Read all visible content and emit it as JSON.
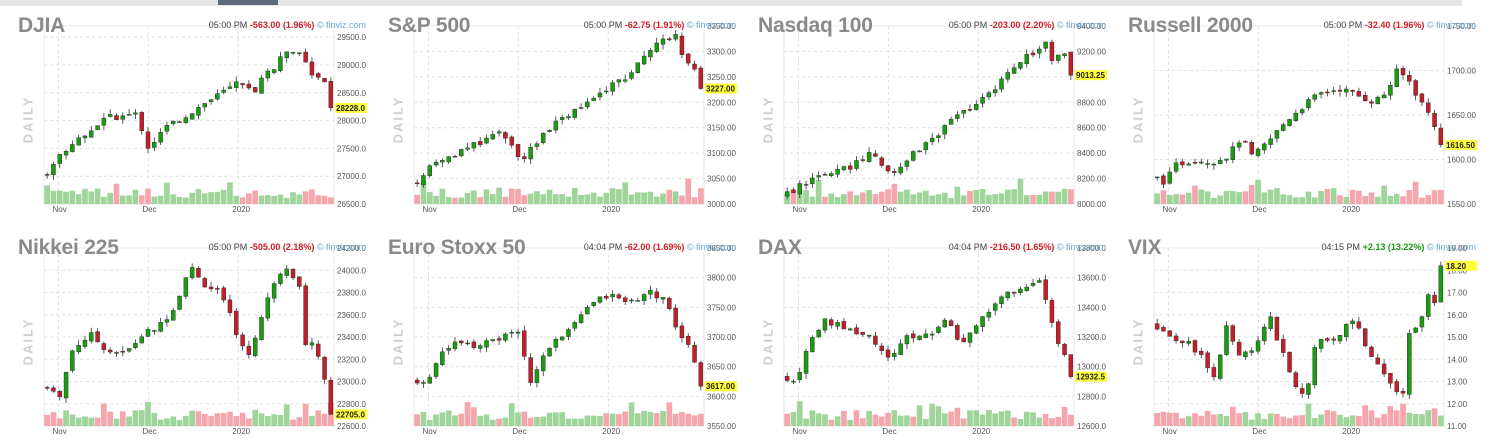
{
  "colors": {
    "up": "#1a9c12",
    "down": "#c0202a",
    "vol_up": "#9fd49a",
    "vol_down": "#f4a6ac",
    "last_bg": "#ffff3b",
    "neg": "#d0202a",
    "pos": "#1a9c12",
    "grid": "#e0e0e0"
  },
  "period_label": "DAILY",
  "source_label": "© finviz.com",
  "chart_data": [
    {
      "type": "candlestick",
      "title": "DJIA",
      "time": "05:00 PM",
      "change": "-563.00 (1.96%)",
      "direction": "down",
      "ylim": [
        26500,
        29700
      ],
      "yticks": [
        "29500.0",
        "29000.0",
        "28500.0",
        "28000.0",
        "27500.0",
        "27000.0",
        "26500.0"
      ],
      "last": "28228.0",
      "last_value": 28228,
      "x_labels": [
        "Nov",
        "Dec",
        "2020"
      ],
      "x_label_pos": [
        0.05,
        0.36,
        0.67
      ],
      "path": [
        [
          0,
          26990
        ],
        [
          0.06,
          27420
        ],
        [
          0.14,
          27780
        ],
        [
          0.22,
          28050
        ],
        [
          0.32,
          28120
        ],
        [
          0.36,
          27520
        ],
        [
          0.42,
          27880
        ],
        [
          0.5,
          28140
        ],
        [
          0.58,
          28400
        ],
        [
          0.66,
          28650
        ],
        [
          0.72,
          28520
        ],
        [
          0.78,
          28900
        ],
        [
          0.82,
          29120
        ],
        [
          0.86,
          29300
        ],
        [
          0.9,
          29050
        ],
        [
          0.93,
          28700
        ],
        [
          0.96,
          28800
        ],
        [
          1,
          28228
        ]
      ]
    },
    {
      "type": "candlestick",
      "title": "S&P 500",
      "time": "05:00 PM",
      "change": "-62.75 (1.91%)",
      "direction": "down",
      "ylim": [
        3000,
        3350
      ],
      "yticks": [
        "3350.00",
        "3300.00",
        "3250.00",
        "3200.00",
        "3150.00",
        "3100.00",
        "3050.00",
        "3000.00"
      ],
      "last": "3227.00",
      "last_value": 3227,
      "x_labels": [
        "Nov",
        "Dec",
        "2020"
      ],
      "x_label_pos": [
        0.05,
        0.36,
        0.67
      ],
      "path": [
        [
          0,
          3040
        ],
        [
          0.06,
          3075
        ],
        [
          0.14,
          3095
        ],
        [
          0.22,
          3120
        ],
        [
          0.3,
          3150
        ],
        [
          0.34,
          3110
        ],
        [
          0.38,
          3085
        ],
        [
          0.44,
          3140
        ],
        [
          0.52,
          3170
        ],
        [
          0.6,
          3205
        ],
        [
          0.68,
          3232
        ],
        [
          0.74,
          3255
        ],
        [
          0.8,
          3290
        ],
        [
          0.86,
          3325
        ],
        [
          0.9,
          3332
        ],
        [
          0.93,
          3290
        ],
        [
          0.96,
          3270
        ],
        [
          1,
          3227
        ]
      ]
    },
    {
      "type": "candlestick",
      "title": "Nasdaq 100",
      "time": "05:00 PM",
      "change": "-203.00 (2.20%)",
      "direction": "down",
      "ylim": [
        8000,
        9400
      ],
      "yticks": [
        "9400.00",
        "9200.00",
        "9000.00",
        "8800.00",
        "8600.00",
        "8400.00",
        "8200.00",
        "8000.00"
      ],
      "last": "9013.25",
      "last_value": 9013.25,
      "x_labels": [
        "Nov",
        "Dec",
        "2020"
      ],
      "x_label_pos": [
        0.05,
        0.36,
        0.67
      ],
      "path": [
        [
          0,
          8060
        ],
        [
          0.06,
          8150
        ],
        [
          0.14,
          8220
        ],
        [
          0.22,
          8280
        ],
        [
          0.3,
          8410
        ],
        [
          0.34,
          8310
        ],
        [
          0.38,
          8260
        ],
        [
          0.44,
          8380
        ],
        [
          0.52,
          8540
        ],
        [
          0.6,
          8690
        ],
        [
          0.68,
          8810
        ],
        [
          0.74,
          8950
        ],
        [
          0.8,
          9080
        ],
        [
          0.86,
          9200
        ],
        [
          0.9,
          9260
        ],
        [
          0.93,
          9100
        ],
        [
          0.96,
          9190
        ],
        [
          1,
          9013
        ]
      ]
    },
    {
      "type": "candlestick",
      "title": "Russell 2000",
      "time": "05:00 PM",
      "change": "-32.40 (1.96%)",
      "direction": "down",
      "ylim": [
        1550,
        1750
      ],
      "yticks": [
        "1750.00",
        "1700.00",
        "1650.00",
        "1600.00",
        "1550.00"
      ],
      "last": "1616.50",
      "last_value": 1616.5,
      "x_labels": [
        "Nov",
        "Dec",
        "2020"
      ],
      "x_label_pos": [
        0.05,
        0.36,
        0.67
      ],
      "path": [
        [
          0,
          1580
        ],
        [
          0.04,
          1575
        ],
        [
          0.08,
          1595
        ],
        [
          0.14,
          1600
        ],
        [
          0.2,
          1598
        ],
        [
          0.26,
          1605
        ],
        [
          0.3,
          1625
        ],
        [
          0.34,
          1602
        ],
        [
          0.4,
          1622
        ],
        [
          0.46,
          1645
        ],
        [
          0.52,
          1662
        ],
        [
          0.58,
          1675
        ],
        [
          0.64,
          1680
        ],
        [
          0.7,
          1672
        ],
        [
          0.76,
          1665
        ],
        [
          0.8,
          1675
        ],
        [
          0.84,
          1700
        ],
        [
          0.88,
          1688
        ],
        [
          0.92,
          1665
        ],
        [
          0.96,
          1645
        ],
        [
          1,
          1616.5
        ]
      ]
    },
    {
      "type": "candlestick",
      "title": "Nikkei 225",
      "time": "05:00 PM",
      "change": "-505.00 (2.18%)",
      "direction": "down",
      "ylim": [
        22600,
        24200
      ],
      "yticks": [
        "24200.0",
        "24000.0",
        "23800.0",
        "23600.0",
        "23400.0",
        "23200.0",
        "23000.0",
        "22800.0",
        "22600.0"
      ],
      "last": "22705.0",
      "last_value": 22705,
      "x_labels": [
        "Nov",
        "Dec",
        "2020"
      ],
      "x_label_pos": [
        0.05,
        0.36,
        0.67
      ],
      "path": [
        [
          0,
          22960
        ],
        [
          0.05,
          22850
        ],
        [
          0.1,
          23300
        ],
        [
          0.16,
          23420
        ],
        [
          0.22,
          23280
        ],
        [
          0.28,
          23250
        ],
        [
          0.34,
          23420
        ],
        [
          0.4,
          23500
        ],
        [
          0.46,
          23720
        ],
        [
          0.5,
          24050
        ],
        [
          0.54,
          23900
        ],
        [
          0.6,
          23800
        ],
        [
          0.64,
          23600
        ],
        [
          0.7,
          23200
        ],
        [
          0.74,
          23500
        ],
        [
          0.8,
          23950
        ],
        [
          0.84,
          24050
        ],
        [
          0.88,
          23850
        ],
        [
          0.9,
          23350
        ],
        [
          0.94,
          23300
        ],
        [
          1,
          22705
        ]
      ]
    },
    {
      "type": "candlestick",
      "title": "Euro Stoxx 50",
      "time": "04:04 PM",
      "change": "-62.00 (1.69%)",
      "direction": "down",
      "ylim": [
        3550,
        3850
      ],
      "yticks": [
        "3850.00",
        "3800.00",
        "3750.00",
        "3700.00",
        "3650.00",
        "3600.00",
        "3550.00"
      ],
      "last": "3617.00",
      "last_value": 3617,
      "x_labels": [
        "Nov",
        "Dec",
        "2020"
      ],
      "x_label_pos": [
        0.05,
        0.36,
        0.67
      ],
      "path": [
        [
          0,
          3625
        ],
        [
          0.04,
          3620
        ],
        [
          0.08,
          3665
        ],
        [
          0.14,
          3690
        ],
        [
          0.22,
          3685
        ],
        [
          0.3,
          3700
        ],
        [
          0.36,
          3705
        ],
        [
          0.4,
          3625
        ],
        [
          0.46,
          3680
        ],
        [
          0.52,
          3705
        ],
        [
          0.58,
          3745
        ],
        [
          0.64,
          3765
        ],
        [
          0.7,
          3770
        ],
        [
          0.76,
          3755
        ],
        [
          0.82,
          3775
        ],
        [
          0.86,
          3765
        ],
        [
          0.9,
          3720
        ],
        [
          0.94,
          3690
        ],
        [
          1,
          3617
        ]
      ]
    },
    {
      "type": "candlestick",
      "title": "DAX",
      "time": "04:04 PM",
      "change": "-216.50 (1.65%)",
      "direction": "down",
      "ylim": [
        12600,
        13800
      ],
      "yticks": [
        "13800.0",
        "13600.0",
        "13400.0",
        "13200.0",
        "13000.0",
        "12800.0",
        "12600.0"
      ],
      "last": "12932.5",
      "last_value": 12932.5,
      "x_labels": [
        "Nov",
        "Dec",
        "2020"
      ],
      "x_label_pos": [
        0.05,
        0.36,
        0.67
      ],
      "path": [
        [
          0,
          12930
        ],
        [
          0.04,
          12890
        ],
        [
          0.08,
          13120
        ],
        [
          0.14,
          13300
        ],
        [
          0.22,
          13260
        ],
        [
          0.3,
          13200
        ],
        [
          0.36,
          13050
        ],
        [
          0.42,
          13200
        ],
        [
          0.5,
          13220
        ],
        [
          0.56,
          13330
        ],
        [
          0.6,
          13150
        ],
        [
          0.66,
          13260
        ],
        [
          0.72,
          13420
        ],
        [
          0.76,
          13500
        ],
        [
          0.8,
          13480
        ],
        [
          0.84,
          13560
        ],
        [
          0.88,
          13600
        ],
        [
          0.91,
          13400
        ],
        [
          0.94,
          13180
        ],
        [
          1,
          12932
        ]
      ]
    },
    {
      "type": "candlestick",
      "title": "VIX",
      "time": "04:15 PM",
      "change": "+2.13 (13.22%)",
      "direction": "up",
      "ylim": [
        11,
        19
      ],
      "yticks": [
        "19.00",
        "18.00",
        "17.00",
        "16.00",
        "15.00",
        "14.00",
        "13.00",
        "12.00",
        "11.00"
      ],
      "last": "18.20",
      "last_value": 18.2,
      "x_labels": [
        "Nov",
        "Dec",
        "2020"
      ],
      "x_label_pos": [
        0.05,
        0.36,
        0.67
      ],
      "path": [
        [
          0,
          15.6
        ],
        [
          0.06,
          15.0
        ],
        [
          0.12,
          14.7
        ],
        [
          0.18,
          13.8
        ],
        [
          0.22,
          13.0
        ],
        [
          0.24,
          15.8
        ],
        [
          0.3,
          14.1
        ],
        [
          0.36,
          14.8
        ],
        [
          0.4,
          15.9
        ],
        [
          0.44,
          14.4
        ],
        [
          0.48,
          13.0
        ],
        [
          0.52,
          12.2
        ],
        [
          0.56,
          14.9
        ],
        [
          0.62,
          14.8
        ],
        [
          0.66,
          15.4
        ],
        [
          0.7,
          15.8
        ],
        [
          0.74,
          14.2
        ],
        [
          0.78,
          13.6
        ],
        [
          0.82,
          12.8
        ],
        [
          0.86,
          12.4
        ],
        [
          0.88,
          15.2
        ],
        [
          0.92,
          15.5
        ],
        [
          0.94,
          17.2
        ],
        [
          0.97,
          16.3
        ],
        [
          1,
          18.2
        ]
      ]
    }
  ]
}
